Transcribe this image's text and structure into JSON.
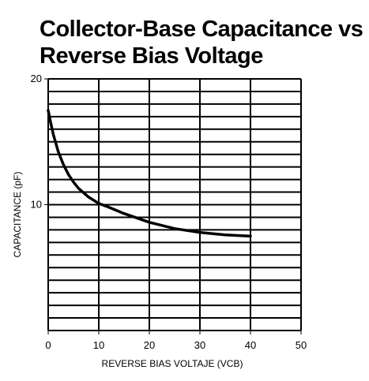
{
  "chart_data": {
    "type": "line",
    "title": [
      "Collector-Base Capacitance vs",
      "Reverse Bias Voltage"
    ],
    "xlabel": "REVERSE BIAS VOLTAJE (VCB)",
    "ylabel": "CAPACITANCE (pF)",
    "xlim": [
      0,
      50
    ],
    "ylim": [
      0,
      20
    ],
    "xticks": [
      0,
      10,
      20,
      30,
      40,
      50
    ],
    "xtick_labels": [
      "0",
      "10",
      "20",
      "30",
      "40",
      "50"
    ],
    "yticks": [
      10,
      20
    ],
    "ytick_labels": [
      "10",
      "20"
    ],
    "grid": true,
    "series": [
      {
        "x": [
          0,
          0.5,
          1,
          2,
          3,
          4,
          5,
          6,
          8,
          10,
          12,
          15,
          20,
          25,
          30,
          35,
          40
        ],
        "y": [
          17.5,
          16.5,
          15.6,
          14.2,
          13.2,
          12.4,
          11.8,
          11.3,
          10.6,
          10.1,
          9.8,
          9.3,
          8.6,
          8.1,
          7.8,
          7.6,
          7.5
        ],
        "color": "#000000"
      }
    ]
  }
}
